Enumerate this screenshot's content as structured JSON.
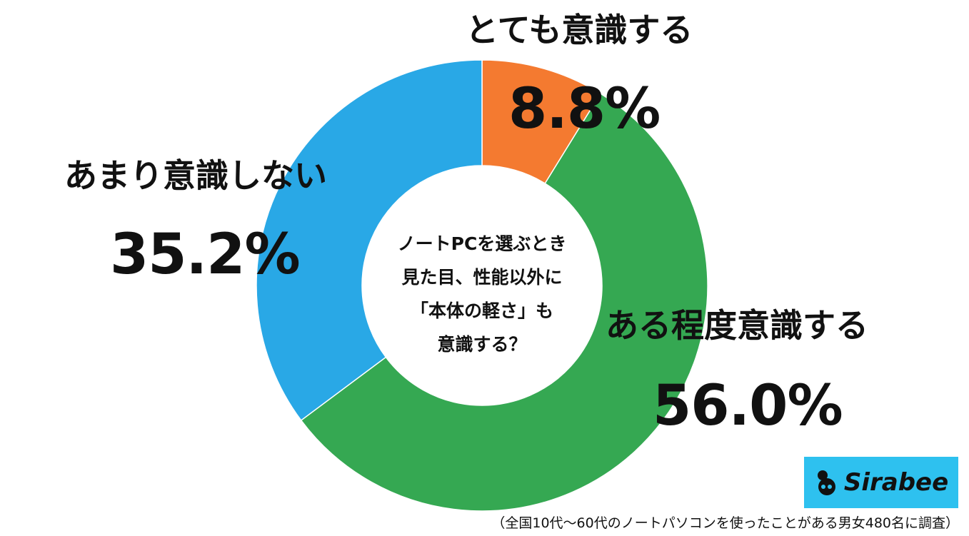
{
  "chart_data": {
    "type": "pie",
    "variant": "donut",
    "question": [
      "ノートPCを選ぶとき",
      "見た目、性能以外に",
      "「本体の軽さ」も",
      "意識する？"
    ],
    "slices": [
      {
        "label": "とても意識する",
        "value": 8.8,
        "display": "8.8%",
        "color": "#f47a30"
      },
      {
        "label": "ある程度意識する",
        "value": 56.0,
        "display": "56.0%",
        "color": "#35a852"
      },
      {
        "label": "あまり意識しない",
        "value": 35.2,
        "display": "35.2%",
        "color": "#29a8e6"
      }
    ],
    "start": "top",
    "direction": "clockwise"
  },
  "logo": {
    "text": "Sirabee",
    "background": "#2ec1ef"
  },
  "footnote": "（全国10代〜60代のノートパソコンを使ったことがある男女480名に調査）"
}
